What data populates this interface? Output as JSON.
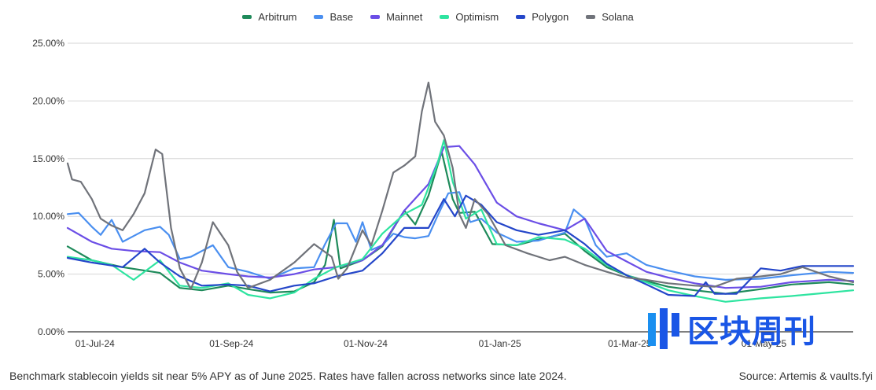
{
  "caption": "Benchmark stablecoin yields sit near 5% APY as of June 2025. Rates have fallen across networks since late 2024.",
  "source": "Source: Artemis & vaults.fyi",
  "watermark": "区块周刊",
  "chart_data": {
    "type": "line",
    "title": "",
    "xlabel": "",
    "ylabel": "",
    "x_range": [
      "2024-06-20",
      "2025-06-12"
    ],
    "ylim": [
      0,
      25
    ],
    "y_ticks": [
      0,
      5,
      10,
      15,
      20,
      25
    ],
    "y_tick_labels": [
      "0.00%",
      "5.00%",
      "10.00%",
      "15.00%",
      "20.00%",
      "25.00%"
    ],
    "x_ticks": [
      "2024-07-01",
      "2024-09-01",
      "2024-11-01",
      "2025-01-01",
      "2025-03-01",
      "2025-05-01"
    ],
    "x_tick_labels": [
      "01-Jul-24",
      "01-Sep-24",
      "01-Nov-24",
      "01-Jan-25",
      "01-Mar-25",
      "01-May-25"
    ],
    "grid": "horizontal",
    "legend_position": "top-center",
    "series": [
      {
        "name": "Arbitrum",
        "color": "#1e8a5a",
        "points": [
          [
            "2024-06-20",
            7.4
          ],
          [
            "2024-07-01",
            6.2
          ],
          [
            "2024-07-15",
            5.6
          ],
          [
            "2024-08-01",
            5.1
          ],
          [
            "2024-08-10",
            3.8
          ],
          [
            "2024-08-20",
            3.6
          ],
          [
            "2024-09-01",
            4.0
          ],
          [
            "2024-09-10",
            3.7
          ],
          [
            "2024-09-20",
            3.4
          ],
          [
            "2024-10-01",
            3.5
          ],
          [
            "2024-10-10",
            4.3
          ],
          [
            "2024-10-15",
            5.8
          ],
          [
            "2024-10-19",
            9.7
          ],
          [
            "2024-10-22",
            5.5
          ],
          [
            "2024-11-01",
            6.2
          ],
          [
            "2024-11-10",
            7.4
          ],
          [
            "2024-11-20",
            10.5
          ],
          [
            "2024-11-25",
            9.3
          ],
          [
            "2024-12-01",
            11.8
          ],
          [
            "2024-12-07",
            15.6
          ],
          [
            "2024-12-12",
            11.5
          ],
          [
            "2024-12-15",
            10.3
          ],
          [
            "2024-12-22",
            10.4
          ],
          [
            "2024-12-30",
            7.6
          ],
          [
            "2025-01-10",
            7.5
          ],
          [
            "2025-01-20",
            8.0
          ],
          [
            "2025-02-01",
            8.5
          ],
          [
            "2025-02-10",
            7.0
          ],
          [
            "2025-02-20",
            5.6
          ],
          [
            "2025-03-01",
            4.9
          ],
          [
            "2025-03-10",
            4.4
          ],
          [
            "2025-03-20",
            3.9
          ],
          [
            "2025-04-01",
            3.6
          ],
          [
            "2025-04-15",
            3.3
          ],
          [
            "2025-05-01",
            3.7
          ],
          [
            "2025-05-15",
            4.1
          ],
          [
            "2025-06-01",
            4.3
          ],
          [
            "2025-06-12",
            4.1
          ]
        ]
      },
      {
        "name": "Base",
        "color": "#4a8ff0",
        "points": [
          [
            "2024-06-20",
            10.2
          ],
          [
            "2024-06-25",
            10.3
          ],
          [
            "2024-07-01",
            9.1
          ],
          [
            "2024-07-05",
            8.4
          ],
          [
            "2024-07-10",
            9.7
          ],
          [
            "2024-07-15",
            7.8
          ],
          [
            "2024-07-20",
            8.3
          ],
          [
            "2024-07-25",
            8.8
          ],
          [
            "2024-08-01",
            9.1
          ],
          [
            "2024-08-05",
            8.4
          ],
          [
            "2024-08-10",
            6.3
          ],
          [
            "2024-08-15",
            6.5
          ],
          [
            "2024-08-20",
            7.0
          ],
          [
            "2024-08-25",
            7.5
          ],
          [
            "2024-09-01",
            5.6
          ],
          [
            "2024-09-10",
            5.2
          ],
          [
            "2024-09-20",
            4.6
          ],
          [
            "2024-10-01",
            5.5
          ],
          [
            "2024-10-10",
            5.6
          ],
          [
            "2024-10-15",
            7.6
          ],
          [
            "2024-10-20",
            9.4
          ],
          [
            "2024-10-25",
            9.4
          ],
          [
            "2024-10-29",
            7.8
          ],
          [
            "2024-11-01",
            9.5
          ],
          [
            "2024-11-05",
            7.1
          ],
          [
            "2024-11-10",
            7.5
          ],
          [
            "2024-11-15",
            8.5
          ],
          [
            "2024-11-20",
            8.2
          ],
          [
            "2024-11-25",
            8.1
          ],
          [
            "2024-12-01",
            8.3
          ],
          [
            "2024-12-05",
            10.0
          ],
          [
            "2024-12-10",
            12.0
          ],
          [
            "2024-12-15",
            12.1
          ],
          [
            "2024-12-20",
            9.5
          ],
          [
            "2024-12-25",
            9.8
          ],
          [
            "2025-01-01",
            8.6
          ],
          [
            "2025-01-10",
            7.8
          ],
          [
            "2025-01-20",
            7.9
          ],
          [
            "2025-02-01",
            8.6
          ],
          [
            "2025-02-05",
            10.6
          ],
          [
            "2025-02-10",
            9.8
          ],
          [
            "2025-02-15",
            7.5
          ],
          [
            "2025-02-20",
            6.5
          ],
          [
            "2025-03-01",
            6.8
          ],
          [
            "2025-03-10",
            5.8
          ],
          [
            "2025-03-20",
            5.3
          ],
          [
            "2025-04-01",
            4.8
          ],
          [
            "2025-04-15",
            4.5
          ],
          [
            "2025-05-01",
            4.6
          ],
          [
            "2025-05-15",
            4.9
          ],
          [
            "2025-06-01",
            5.2
          ],
          [
            "2025-06-12",
            5.1
          ]
        ]
      },
      {
        "name": "Mainnet",
        "color": "#6b4ee6",
        "points": [
          [
            "2024-06-20",
            9.0
          ],
          [
            "2024-07-01",
            7.8
          ],
          [
            "2024-07-10",
            7.2
          ],
          [
            "2024-07-20",
            7.0
          ],
          [
            "2024-08-01",
            6.9
          ],
          [
            "2024-08-10",
            6.0
          ],
          [
            "2024-08-20",
            5.3
          ],
          [
            "2024-09-01",
            5.0
          ],
          [
            "2024-09-10",
            4.8
          ],
          [
            "2024-09-20",
            4.7
          ],
          [
            "2024-10-01",
            5.0
          ],
          [
            "2024-10-10",
            5.4
          ],
          [
            "2024-10-20",
            5.6
          ],
          [
            "2024-11-01",
            6.2
          ],
          [
            "2024-11-10",
            7.5
          ],
          [
            "2024-11-20",
            10.5
          ],
          [
            "2024-12-01",
            12.8
          ],
          [
            "2024-12-08",
            16.0
          ],
          [
            "2024-12-15",
            16.1
          ],
          [
            "2024-12-22",
            14.5
          ],
          [
            "2025-01-01",
            11.2
          ],
          [
            "2025-01-10",
            10.0
          ],
          [
            "2025-01-20",
            9.4
          ],
          [
            "2025-02-01",
            8.8
          ],
          [
            "2025-02-10",
            9.8
          ],
          [
            "2025-02-20",
            7.0
          ],
          [
            "2025-03-01",
            6.1
          ],
          [
            "2025-03-10",
            5.2
          ],
          [
            "2025-03-20",
            4.7
          ],
          [
            "2025-04-01",
            4.2
          ],
          [
            "2025-04-15",
            3.8
          ],
          [
            "2025-05-01",
            3.9
          ],
          [
            "2025-05-15",
            4.3
          ],
          [
            "2025-06-01",
            4.5
          ],
          [
            "2025-06-12",
            4.4
          ]
        ]
      },
      {
        "name": "Optimism",
        "color": "#2ee4a0",
        "points": [
          [
            "2024-06-20",
            6.5
          ],
          [
            "2024-07-01",
            6.2
          ],
          [
            "2024-07-10",
            5.8
          ],
          [
            "2024-07-20",
            4.5
          ],
          [
            "2024-08-01",
            6.2
          ],
          [
            "2024-08-10",
            4.0
          ],
          [
            "2024-08-20",
            3.8
          ],
          [
            "2024-09-01",
            4.2
          ],
          [
            "2024-09-10",
            3.2
          ],
          [
            "2024-09-20",
            2.9
          ],
          [
            "2024-10-01",
            3.4
          ],
          [
            "2024-10-10",
            4.6
          ],
          [
            "2024-10-20",
            5.6
          ],
          [
            "2024-11-01",
            6.3
          ],
          [
            "2024-11-10",
            8.5
          ],
          [
            "2024-11-20",
            10.2
          ],
          [
            "2024-11-28",
            11.0
          ],
          [
            "2024-12-05",
            14.5
          ],
          [
            "2024-12-08",
            16.6
          ],
          [
            "2024-12-12",
            13.0
          ],
          [
            "2024-12-18",
            9.8
          ],
          [
            "2024-12-25",
            10.6
          ],
          [
            "2025-01-01",
            7.6
          ],
          [
            "2025-01-10",
            7.5
          ],
          [
            "2025-01-20",
            8.2
          ],
          [
            "2025-02-01",
            8.0
          ],
          [
            "2025-02-10",
            7.2
          ],
          [
            "2025-02-20",
            5.8
          ],
          [
            "2025-03-01",
            4.9
          ],
          [
            "2025-03-10",
            4.3
          ],
          [
            "2025-03-20",
            3.6
          ],
          [
            "2025-04-01",
            3.1
          ],
          [
            "2025-04-15",
            2.6
          ],
          [
            "2025-05-01",
            2.9
          ],
          [
            "2025-05-15",
            3.1
          ],
          [
            "2025-06-01",
            3.4
          ],
          [
            "2025-06-12",
            3.6
          ]
        ]
      },
      {
        "name": "Polygon",
        "color": "#2446c9",
        "points": [
          [
            "2024-06-20",
            6.4
          ],
          [
            "2024-07-01",
            6.0
          ],
          [
            "2024-07-15",
            5.6
          ],
          [
            "2024-07-25",
            7.2
          ],
          [
            "2024-08-01",
            6.0
          ],
          [
            "2024-08-10",
            4.8
          ],
          [
            "2024-08-20",
            4.0
          ],
          [
            "2024-09-01",
            4.1
          ],
          [
            "2024-09-10",
            4.0
          ],
          [
            "2024-09-20",
            3.5
          ],
          [
            "2024-10-01",
            4.0
          ],
          [
            "2024-10-10",
            4.2
          ],
          [
            "2024-10-20",
            4.8
          ],
          [
            "2024-11-01",
            5.3
          ],
          [
            "2024-11-10",
            6.8
          ],
          [
            "2024-11-20",
            9.0
          ],
          [
            "2024-12-01",
            9.0
          ],
          [
            "2024-12-08",
            11.5
          ],
          [
            "2024-12-13",
            10.0
          ],
          [
            "2024-12-18",
            11.8
          ],
          [
            "2024-12-25",
            11.0
          ],
          [
            "2025-01-01",
            9.5
          ],
          [
            "2025-01-10",
            8.8
          ],
          [
            "2025-01-20",
            8.4
          ],
          [
            "2025-02-01",
            8.8
          ],
          [
            "2025-02-10",
            7.6
          ],
          [
            "2025-02-20",
            5.9
          ],
          [
            "2025-03-01",
            4.9
          ],
          [
            "2025-03-10",
            4.1
          ],
          [
            "2025-03-20",
            3.2
          ],
          [
            "2025-04-01",
            3.1
          ],
          [
            "2025-04-06",
            4.3
          ],
          [
            "2025-04-10",
            3.3
          ],
          [
            "2025-04-20",
            3.3
          ],
          [
            "2025-05-01",
            5.5
          ],
          [
            "2025-05-10",
            5.3
          ],
          [
            "2025-05-20",
            5.7
          ],
          [
            "2025-06-01",
            5.7
          ],
          [
            "2025-06-12",
            5.7
          ]
        ]
      },
      {
        "name": "Solana",
        "color": "#70737a",
        "points": [
          [
            "2024-06-20",
            14.6
          ],
          [
            "2024-06-22",
            13.2
          ],
          [
            "2024-06-26",
            13.0
          ],
          [
            "2024-07-01",
            11.5
          ],
          [
            "2024-07-05",
            9.8
          ],
          [
            "2024-07-10",
            9.2
          ],
          [
            "2024-07-15",
            8.8
          ],
          [
            "2024-07-20",
            10.2
          ],
          [
            "2024-07-25",
            12.0
          ],
          [
            "2024-07-30",
            15.8
          ],
          [
            "2024-08-02",
            15.4
          ],
          [
            "2024-08-06",
            9.0
          ],
          [
            "2024-08-10",
            5.5
          ],
          [
            "2024-08-15",
            3.7
          ],
          [
            "2024-08-20",
            6.0
          ],
          [
            "2024-08-25",
            9.5
          ],
          [
            "2024-09-01",
            7.5
          ],
          [
            "2024-09-05",
            5.2
          ],
          [
            "2024-09-10",
            3.8
          ],
          [
            "2024-09-20",
            4.5
          ],
          [
            "2024-10-01",
            6.0
          ],
          [
            "2024-10-10",
            7.6
          ],
          [
            "2024-10-18",
            6.5
          ],
          [
            "2024-10-21",
            4.6
          ],
          [
            "2024-10-25",
            5.5
          ],
          [
            "2024-11-01",
            8.8
          ],
          [
            "2024-11-05",
            7.5
          ],
          [
            "2024-11-10",
            10.5
          ],
          [
            "2024-11-15",
            13.8
          ],
          [
            "2024-11-20",
            14.4
          ],
          [
            "2024-11-25",
            15.2
          ],
          [
            "2024-11-28",
            19.1
          ],
          [
            "2024-12-01",
            21.6
          ],
          [
            "2024-12-04",
            18.2
          ],
          [
            "2024-12-08",
            17.0
          ],
          [
            "2024-12-12",
            14.2
          ],
          [
            "2024-12-15",
            10.2
          ],
          [
            "2024-12-18",
            9.0
          ],
          [
            "2024-12-22",
            11.5
          ],
          [
            "2024-12-28",
            10.2
          ],
          [
            "2025-01-05",
            7.5
          ],
          [
            "2025-01-15",
            6.8
          ],
          [
            "2025-01-25",
            6.2
          ],
          [
            "2025-02-01",
            6.5
          ],
          [
            "2025-02-10",
            5.8
          ],
          [
            "2025-02-20",
            5.2
          ],
          [
            "2025-03-01",
            4.7
          ],
          [
            "2025-03-10",
            4.5
          ],
          [
            "2025-03-20",
            4.2
          ],
          [
            "2025-04-01",
            4.0
          ],
          [
            "2025-04-10",
            3.9
          ],
          [
            "2025-04-20",
            4.6
          ],
          [
            "2025-05-01",
            4.8
          ],
          [
            "2025-05-10",
            5.0
          ],
          [
            "2025-05-20",
            5.6
          ],
          [
            "2025-06-01",
            4.8
          ],
          [
            "2025-06-12",
            4.3
          ]
        ]
      }
    ]
  }
}
